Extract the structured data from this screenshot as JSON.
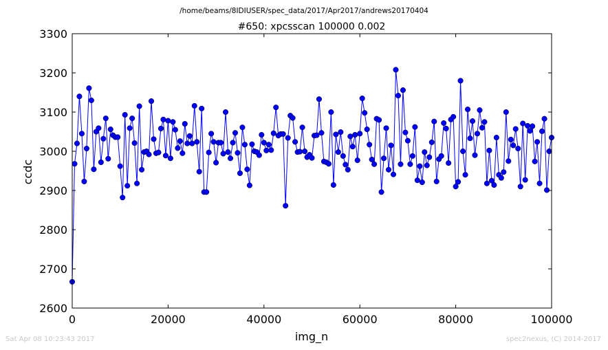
{
  "figure": {
    "path_title": "/home/beams/8IDIUSER/spec_data/2017/Apr2017/andrews20170404",
    "footer_left": "Sat Apr 08 10:23:43 2017",
    "footer_right": "spec2nexus, (C) 2014-2017"
  },
  "chart_data": {
    "type": "line",
    "title": "#650: xpcsscan 100000 0.002",
    "xlabel": "img_n",
    "ylabel": "ccdc",
    "xlim": [
      0,
      100000
    ],
    "ylim": [
      2600,
      3300
    ],
    "xticks": [
      0,
      20000,
      40000,
      60000,
      80000,
      100000
    ],
    "yticks": [
      2600,
      2700,
      2800,
      2900,
      3000,
      3100,
      3200,
      3300
    ],
    "xtick_labels": [
      "0",
      "20000",
      "40000",
      "60000",
      "80000",
      "100000"
    ],
    "ytick_labels": [
      "2600",
      "2700",
      "2800",
      "2900",
      "3000",
      "3100",
      "3200",
      "3300"
    ],
    "grid": false,
    "line_color": "#0000ff",
    "marker_color": "#0000ff",
    "marker": "circle",
    "series": [
      {
        "x": [
          0,
          500,
          1000,
          1500,
          2000,
          2500,
          3000,
          3500,
          4000,
          4500,
          5000,
          5500,
          6000,
          6500,
          7000,
          7500,
          8000,
          8500,
          9000,
          9500,
          10000,
          10500,
          11000,
          11500,
          12000,
          12500,
          13000,
          13500,
          14000,
          14500,
          15000,
          15500,
          16000,
          16500,
          17000,
          17500,
          18000,
          18500,
          19000,
          19500,
          20000,
          20500,
          21000,
          21500,
          22000,
          22500,
          23000,
          23500,
          24000,
          24500,
          25000,
          25500,
          26000,
          26500,
          27000,
          27500,
          28000,
          28500,
          29000,
          29500,
          30000,
          30500,
          31000,
          31500,
          32000,
          32500,
          33000,
          33500,
          34000,
          34500,
          35000,
          35500,
          36000,
          36500,
          37000,
          37500,
          38000,
          38500,
          39000,
          39500,
          40000,
          40500,
          41000,
          41500,
          42000,
          42500,
          43000,
          43500,
          44000,
          44500,
          45000,
          45500,
          46000,
          46500,
          47000,
          47500,
          48000,
          48500,
          49000,
          49500,
          50000,
          50500,
          51000,
          51500,
          52000,
          52500,
          53000,
          53500,
          54000,
          54500,
          55000,
          55500,
          56000,
          56500,
          57000,
          57500,
          58000,
          58500,
          59000,
          59500,
          60000,
          60500,
          61000,
          61500,
          62000,
          62500,
          63000,
          63500,
          64000,
          64500,
          65000,
          65500,
          66000,
          66500,
          67000,
          67500,
          68000,
          68500,
          69000,
          69500,
          70000,
          70500,
          71000,
          71500,
          72000,
          72500,
          73000,
          73500,
          74000,
          74500,
          75000,
          75500,
          76000,
          76500,
          77000,
          77500,
          78000,
          78500,
          79000,
          79500,
          80000,
          80500,
          81000,
          81500,
          82000,
          82500,
          83000,
          83500,
          84000,
          84500,
          85000,
          85500,
          86000,
          86500,
          87000,
          87500,
          88000,
          88500,
          89000,
          89500,
          90000,
          90500,
          91000,
          91500,
          92000,
          92500,
          93000,
          93500,
          94000,
          94500,
          95000,
          95500,
          96000,
          96500,
          97000,
          97500,
          98000,
          98500,
          99000,
          99500,
          100000
        ],
        "y": [
          2667,
          2968,
          3020,
          3140,
          3045,
          2923,
          3007,
          3161,
          3130,
          2954,
          3050,
          3059,
          2972,
          3032,
          3084,
          2981,
          3056,
          3041,
          3036,
          3036,
          2962,
          2882,
          3093,
          2912,
          3059,
          3084,
          3021,
          2918,
          3115,
          2953,
          2998,
          3000,
          2992,
          3128,
          3031,
          2995,
          2997,
          3058,
          3081,
          2989,
          3078,
          2982,
          3075,
          3055,
          3008,
          3026,
          2995,
          3070,
          3020,
          3039,
          3020,
          3116,
          3024,
          2948,
          3109,
          2896,
          2896,
          2997,
          3045,
          3024,
          2971,
          3022,
          3022,
          2994,
          3100,
          2998,
          2982,
          3022,
          3047,
          2996,
          2944,
          3061,
          3017,
          2954,
          2913,
          3018,
          3000,
          2998,
          2990,
          3042,
          3022,
          3002,
          3017,
          3003,
          3046,
          3112,
          3040,
          3044,
          3044,
          2861,
          3034,
          3091,
          3085,
          3024,
          2998,
          2999,
          3061,
          3000,
          2985,
          2991,
          2983,
          3040,
          3041,
          3133,
          3047,
          2974,
          2972,
          2968,
          3100,
          2914,
          3043,
          2998,
          3049,
          2988,
          2966,
          2953,
          3038,
          3012,
          3042,
          2977,
          3045,
          3135,
          3098,
          3056,
          3017,
          2979,
          2967,
          3083,
          3080,
          2896,
          2982,
          3059,
          2953,
          3015,
          2941,
          3208,
          3142,
          2967,
          3156,
          3048,
          3027,
          2967,
          2988,
          3062,
          2926,
          2962,
          2921,
          2998,
          2964,
          2985,
          3023,
          3076,
          2923,
          2980,
          2988,
          3072,
          3058,
          2970,
          3081,
          3088,
          2910,
          2922,
          3180,
          3000,
          2940,
          3107,
          3033,
          3077,
          2990,
          3045,
          3105,
          3060,
          3075,
          2918,
          3002,
          2925,
          2914,
          3035,
          2940,
          2932,
          2947,
          3100,
          2975,
          3030,
          3015,
          3057,
          3007,
          2910,
          3071,
          2927,
          3065,
          3052,
          3064,
          2974,
          3024,
          2918,
          3051,
          3083,
          2901,
          3000,
          3035
        ]
      }
    ]
  }
}
